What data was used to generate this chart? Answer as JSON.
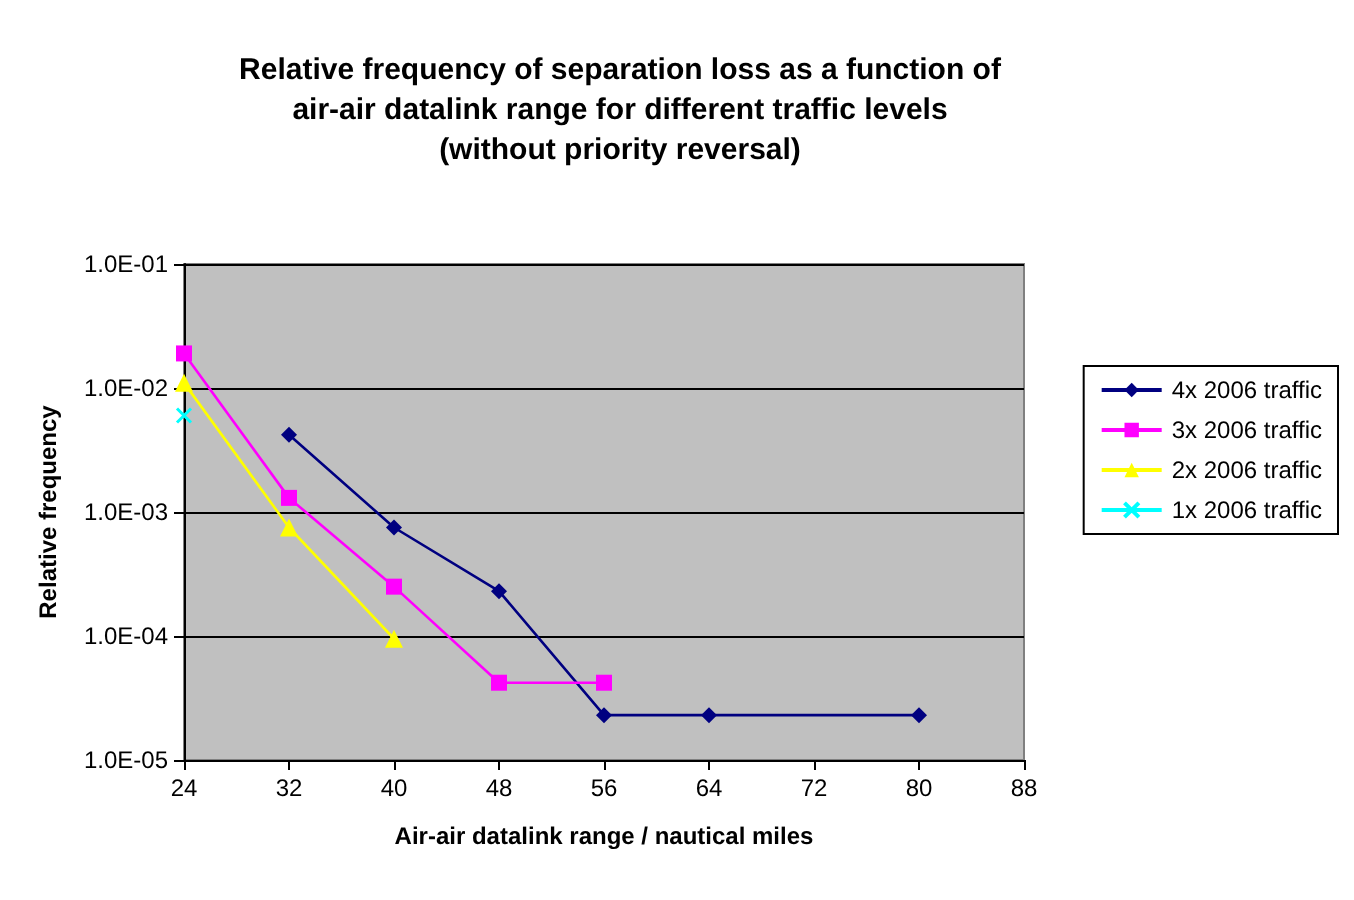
{
  "chart_data": {
    "type": "line",
    "title": "Relative frequency of separation loss as a function of\nair-air datalink range for different traffic levels\n(without priority reversal)",
    "xlabel": "Air-air datalink range / nautical miles",
    "ylabel": "Relative frequency",
    "series": [
      {
        "name": "4x 2006 traffic",
        "color": "#000080",
        "marker": "diamond",
        "x": [
          32,
          40,
          48,
          56,
          64,
          80
        ],
        "values": [
          0.0042,
          0.00075,
          0.00023,
          2.3e-05,
          2.3e-05,
          2.3e-05
        ]
      },
      {
        "name": "3x 2006 traffic",
        "color": "#ff00ff",
        "marker": "square",
        "x": [
          24,
          32,
          40,
          48,
          56
        ],
        "values": [
          0.019,
          0.0013,
          0.00025,
          4.2e-05,
          4.2e-05
        ]
      },
      {
        "name": "2x 2006 traffic",
        "color": "#ffff00",
        "marker": "triangle",
        "x": [
          24,
          32,
          40
        ],
        "values": [
          0.011,
          0.00075,
          9.5e-05
        ]
      },
      {
        "name": "1x 2006 traffic",
        "color": "#00ffff",
        "marker": "cross",
        "x": [
          24
        ],
        "values": [
          0.006
        ]
      }
    ],
    "xlim": [
      24,
      88
    ],
    "xticks": [
      24,
      32,
      40,
      48,
      56,
      64,
      72,
      80,
      88
    ],
    "ylim": [
      1e-05,
      0.1
    ],
    "yticks": [
      {
        "value": 1e-05,
        "label": "1.0E-05"
      },
      {
        "value": 0.0001,
        "label": "1.0E-04"
      },
      {
        "value": 0.001,
        "label": "1.0E-03"
      },
      {
        "value": 0.01,
        "label": "1.0E-02"
      },
      {
        "value": 0.1,
        "label": "1.0E-01"
      }
    ],
    "log": "y",
    "grid": "y",
    "legend": "right",
    "line_style": "solid"
  }
}
